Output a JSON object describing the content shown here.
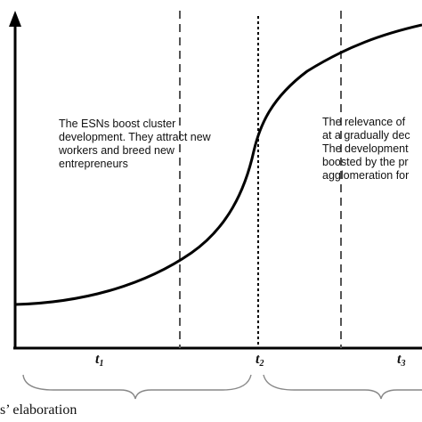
{
  "annotations": [
    "The ESNs boost cluster\ndevelopment. They attract new\nworkers and breed new\nentrepreneurs",
    "The relevance of\nat a gradually dec\nThe development\nboosted by the pr\nagglomeration for"
  ],
  "time_labels": [
    {
      "base": "t",
      "sub": "1"
    },
    {
      "base": "t",
      "sub": "2"
    },
    {
      "base": "t",
      "sub": "3"
    }
  ],
  "caption": "s’ elaboration"
}
